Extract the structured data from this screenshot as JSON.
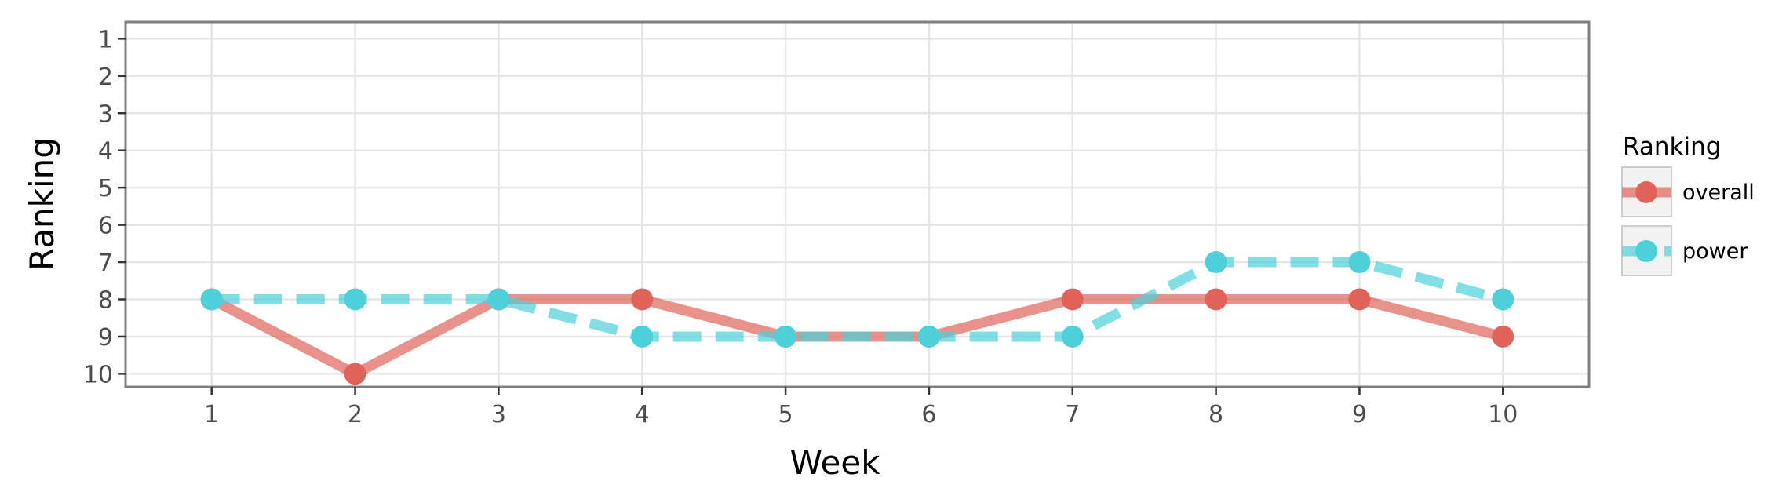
{
  "chart_data": {
    "type": "line",
    "xlabel": "Week",
    "ylabel": "Ranking",
    "x": [
      1,
      2,
      3,
      4,
      5,
      6,
      7,
      8,
      9,
      10
    ],
    "x_ticks": [
      "1",
      "2",
      "3",
      "4",
      "5",
      "6",
      "7",
      "8",
      "9",
      "10"
    ],
    "y_ticks": [
      "1",
      "2",
      "3",
      "4",
      "5",
      "6",
      "7",
      "8",
      "9",
      "10"
    ],
    "xlim": [
      0.4,
      10.6
    ],
    "ylim": [
      10.35,
      0.55
    ],
    "y_reversed": true,
    "grid": true,
    "legend": {
      "title": "Ranking",
      "position": "right"
    },
    "series": [
      {
        "name": "overall",
        "values": [
          8,
          10,
          8,
          8,
          9,
          9,
          8,
          8,
          8,
          9
        ],
        "color": "#e0635a",
        "line_style": "solid"
      },
      {
        "name": "power",
        "values": [
          8,
          8,
          8,
          9,
          9,
          9,
          9,
          7,
          7,
          8
        ],
        "color": "#4dd0da",
        "line_style": "dashed"
      }
    ]
  }
}
